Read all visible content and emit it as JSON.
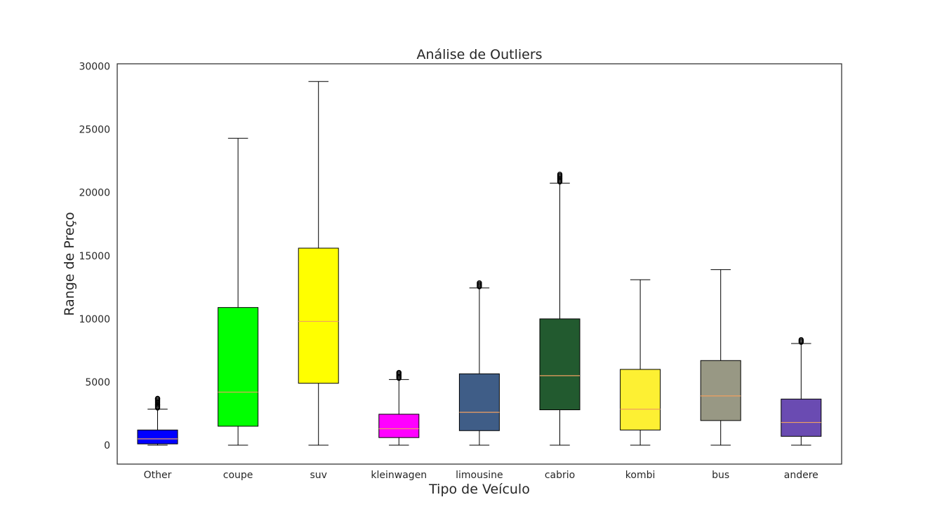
{
  "chart_data": {
    "type": "box",
    "title": "Análise de Outliers",
    "xlabel": "Tipo de Veículo",
    "ylabel": "Range de Preço",
    "ylim": [
      -1500,
      30200
    ],
    "yticks": [
      0,
      5000,
      10000,
      15000,
      20000,
      25000,
      30000
    ],
    "grid": false,
    "legend": "none",
    "categories": [
      "Other",
      "coupe",
      "suv",
      "kleinwagen",
      "limousine",
      "cabrio",
      "kombi",
      "bus",
      "andere"
    ],
    "boxes": [
      {
        "category": "Other",
        "color": "#0000ff",
        "whisker_low": 0,
        "q1": 100,
        "median": 500,
        "q3": 1200,
        "whisker_high": 2850,
        "outliers": [
          2950,
          3050,
          3150,
          3250,
          3350,
          3450,
          3550,
          3650,
          3700
        ]
      },
      {
        "category": "coupe",
        "color": "#00ff00",
        "whisker_low": 0,
        "q1": 1500,
        "median": 4200,
        "q3": 10900,
        "whisker_high": 24300,
        "outliers": []
      },
      {
        "category": "suv",
        "color": "#ffff00",
        "whisker_low": 0,
        "q1": 4900,
        "median": 9800,
        "q3": 15600,
        "whisker_high": 28800,
        "outliers": []
      },
      {
        "category": "kleinwagen",
        "color": "#ff00ff",
        "whisker_low": 0,
        "q1": 600,
        "median": 1300,
        "q3": 2450,
        "whisker_high": 5200,
        "outliers": [
          5300,
          5400,
          5500,
          5600,
          5700,
          5750
        ]
      },
      {
        "category": "limousine",
        "color": "#3f5d87",
        "whisker_low": 0,
        "q1": 1150,
        "median": 2600,
        "q3": 5650,
        "whisker_high": 12450,
        "outliers": [
          12550,
          12650,
          12750,
          12850
        ]
      },
      {
        "category": "cabrio",
        "color": "#225a2f",
        "whisker_low": 0,
        "q1": 2800,
        "median": 5500,
        "q3": 10000,
        "whisker_high": 20750,
        "outliers": [
          20850,
          20950,
          21050,
          21150,
          21250,
          21350,
          21450
        ]
      },
      {
        "category": "kombi",
        "color": "#fdf033",
        "whisker_low": 0,
        "q1": 1200,
        "median": 2850,
        "q3": 6000,
        "whisker_high": 13100,
        "outliers": []
      },
      {
        "category": "bus",
        "color": "#989884",
        "whisker_low": 0,
        "q1": 1950,
        "median": 3900,
        "q3": 6700,
        "whisker_high": 13900,
        "outliers": []
      },
      {
        "category": "andere",
        "color": "#6a4bb2",
        "whisker_low": 0,
        "q1": 700,
        "median": 1800,
        "q3": 3650,
        "whisker_high": 8050,
        "outliers": [
          8150,
          8250,
          8350
        ]
      }
    ]
  }
}
